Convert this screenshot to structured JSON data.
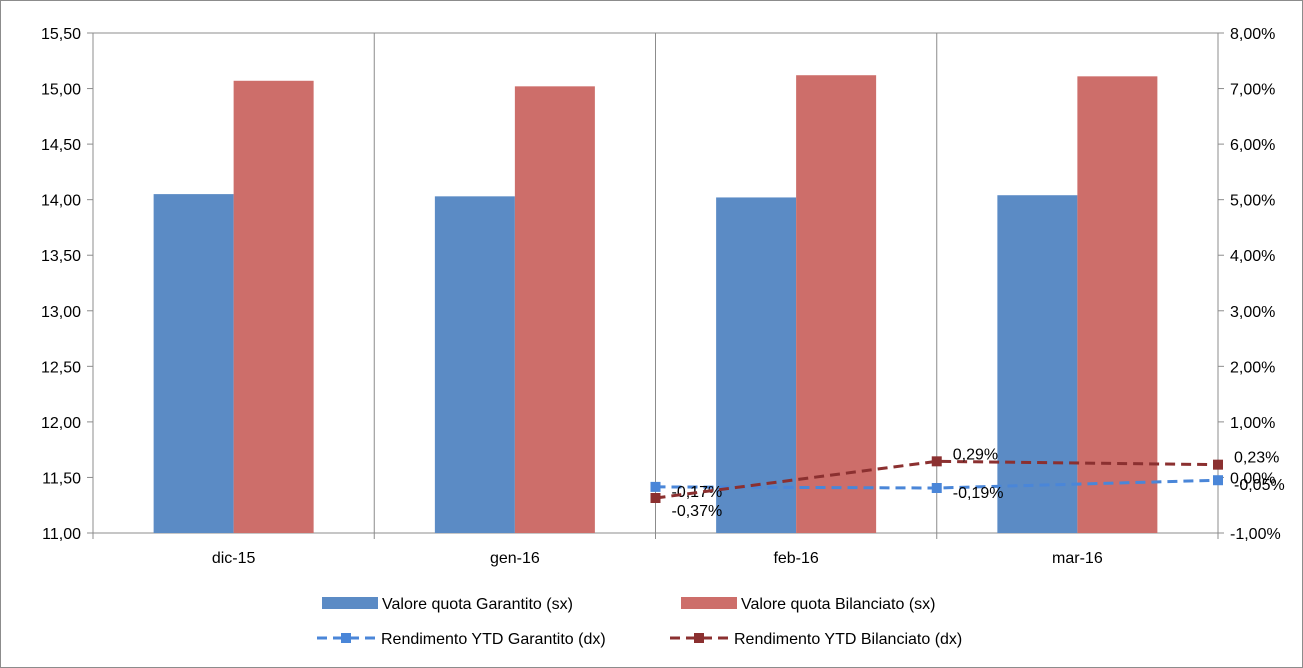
{
  "chart_data": {
    "type": "bar",
    "categories": [
      "dic-15",
      "gen-16",
      "feb-16",
      "mar-16"
    ],
    "series": [
      {
        "name": "Valore quota Garantito (sx)",
        "kind": "bar",
        "axis": "left",
        "color": "#5b8bc5",
        "values": [
          14.05,
          14.03,
          14.02,
          14.04
        ]
      },
      {
        "name": "Valore quota Bilanciato (sx)",
        "kind": "bar",
        "axis": "left",
        "color": "#cd6e6a",
        "values": [
          15.07,
          15.02,
          15.12,
          15.11
        ]
      },
      {
        "name": "Rendimento YTD Garantito (dx)",
        "kind": "line",
        "axis": "right",
        "color": "#4a86d8",
        "dash": "dashed",
        "values": [
          null,
          -0.17,
          -0.19,
          -0.05
        ],
        "labels": [
          "",
          "-0,17%",
          "-0,19%",
          "-0,05%"
        ]
      },
      {
        "name": "Rendimento YTD Bilanciato (dx)",
        "kind": "line",
        "axis": "right",
        "color": "#8b3030",
        "dash": "dashed",
        "values": [
          null,
          -0.37,
          0.29,
          0.23
        ],
        "labels": [
          "",
          "-0,37%",
          "0,29%",
          "0,23%"
        ]
      }
    ],
    "y_left": {
      "min": 11.0,
      "max": 15.5,
      "step": 0.5,
      "tick_labels": [
        "11,00",
        "11,50",
        "12,00",
        "12,50",
        "13,00",
        "13,50",
        "14,00",
        "14,50",
        "15,00",
        "15,50"
      ]
    },
    "y_right": {
      "min": -1.0,
      "max": 8.0,
      "step": 1.0,
      "tick_labels": [
        "-1,00%",
        "0,00%",
        "1,00%",
        "2,00%",
        "3,00%",
        "4,00%",
        "5,00%",
        "6,00%",
        "7,00%",
        "8,00%"
      ]
    },
    "grid": "vertical category lines",
    "legend_position": "bottom"
  }
}
